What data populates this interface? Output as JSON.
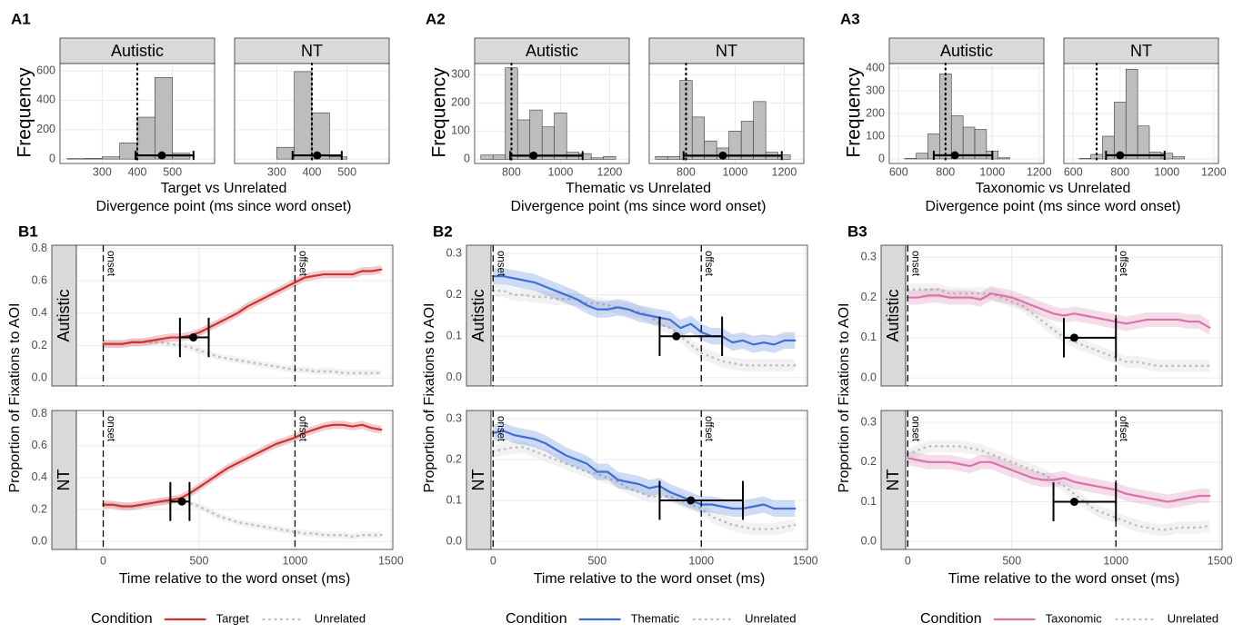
{
  "chart_data": [
    {
      "type": "histogram",
      "panel": "A1",
      "ylabel": "Frequency",
      "xlabel": [
        "Target vs Unrelated",
        "Divergence point (ms since word onset)"
      ],
      "xlim": [
        180,
        620
      ],
      "xticks": [
        300,
        400,
        500
      ],
      "ylim": [
        -30,
        650
      ],
      "yticks": [
        0,
        200,
        400,
        600
      ],
      "facets": [
        {
          "name": "Autistic",
          "bins": [
            200,
            250,
            300,
            350,
            400,
            450,
            500,
            550,
            600
          ],
          "values": [
            3,
            5,
            15,
            110,
            285,
            555,
            40,
            0
          ],
          "reference": 400,
          "estimate": 470,
          "ci": [
            395,
            560
          ]
        },
        {
          "name": "NT",
          "bins": [
            200,
            250,
            300,
            350,
            400,
            450,
            500,
            550,
            600
          ],
          "values": [
            0,
            0,
            80,
            595,
            315,
            15,
            0,
            0
          ],
          "reference": 400,
          "estimate": 415,
          "ci": [
            345,
            485
          ]
        }
      ]
    },
    {
      "type": "histogram",
      "panel": "A2",
      "ylabel": "Frequency",
      "xlabel": [
        "Thematic vs Unrelated",
        "Divergence point (ms since word onset)"
      ],
      "xlim": [
        650,
        1280
      ],
      "xticks": [
        800,
        1000,
        1200
      ],
      "ylim": [
        -15,
        340
      ],
      "yticks": [
        0,
        100,
        200,
        300
      ],
      "facets": [
        {
          "name": "Autistic",
          "bins": [
            675,
            725,
            775,
            825,
            875,
            925,
            975,
            1025,
            1075,
            1125,
            1175,
            1225
          ],
          "values": [
            15,
            15,
            325,
            140,
            175,
            115,
            165,
            25,
            20,
            5,
            10
          ],
          "reference": 800,
          "estimate": 890,
          "ci": [
            795,
            1090
          ]
        },
        {
          "name": "NT",
          "bins": [
            675,
            725,
            775,
            825,
            875,
            925,
            975,
            1025,
            1075,
            1125,
            1175,
            1225
          ],
          "values": [
            10,
            10,
            280,
            150,
            65,
            40,
            100,
            135,
            205,
            25,
            15
          ],
          "reference": 800,
          "estimate": 950,
          "ci": [
            790,
            1190
          ]
        }
      ]
    },
    {
      "type": "histogram",
      "panel": "A3",
      "ylabel": "Frequency",
      "xlabel": [
        "Taxonomic vs Unrelated",
        "Divergence point (ms since word onset)"
      ],
      "xlim": [
        560,
        1220
      ],
      "xticks": [
        600,
        800,
        1000,
        1200
      ],
      "ylim": [
        -20,
        420
      ],
      "yticks": [
        0,
        100,
        200,
        300,
        400
      ],
      "facets": [
        {
          "name": "Autistic",
          "bins": [
            625,
            675,
            725,
            775,
            825,
            875,
            925,
            975,
            1025,
            1075
          ],
          "values": [
            2,
            25,
            110,
            375,
            190,
            140,
            130,
            35,
            5
          ],
          "reference": 800,
          "estimate": 840,
          "ci": [
            750,
            1000
          ]
        },
        {
          "name": "NT",
          "bins": [
            625,
            675,
            725,
            775,
            825,
            875,
            925,
            975,
            1025,
            1075
          ],
          "values": [
            2,
            20,
            100,
            250,
            395,
            145,
            30,
            25,
            10
          ],
          "reference": 700,
          "estimate": 800,
          "ci": [
            740,
            990
          ]
        }
      ]
    },
    {
      "type": "line",
      "panel": "B1",
      "ylabel": "Proportion of Fixations to AOI",
      "xlabel": "Time relative to the word onset (ms)",
      "legend_title": "Condition",
      "xlim": [
        -140,
        1510
      ],
      "xticks": [
        0,
        500,
        1000,
        1500
      ],
      "ylim": [
        -0.05,
        0.82
      ],
      "yticks": [
        {
          "value": 0,
          "label": "0.0"
        },
        0.2,
        0.4,
        0.6,
        0.8
      ],
      "annotations": [
        {
          "value": 0,
          "label": "onset"
        },
        {
          "value": 1000,
          "label": "offset"
        }
      ],
      "x": [
        0,
        50,
        100,
        150,
        200,
        250,
        300,
        350,
        400,
        450,
        500,
        550,
        600,
        650,
        700,
        750,
        800,
        850,
        900,
        950,
        1000,
        1050,
        1100,
        1150,
        1200,
        1250,
        1300,
        1350,
        1400,
        1450
      ],
      "series": [
        {
          "name": "Target",
          "color": "#cc3333",
          "dash": false,
          "ribbon": 0.025
        },
        {
          "name": "Unrelated",
          "color": "#c0c0c0",
          "dash": true,
          "ribbon": 0.02
        }
      ],
      "facets": [
        {
          "name": "Autistic",
          "series": [
            {
              "values": [
                0.21,
                0.21,
                0.21,
                0.22,
                0.22,
                0.23,
                0.24,
                0.25,
                0.25,
                0.26,
                0.28,
                0.31,
                0.34,
                0.37,
                0.4,
                0.44,
                0.47,
                0.5,
                0.53,
                0.56,
                0.59,
                0.62,
                0.63,
                0.64,
                0.64,
                0.64,
                0.64,
                0.66,
                0.66,
                0.67
              ]
            },
            {
              "values": [
                0.21,
                0.21,
                0.21,
                0.22,
                0.22,
                0.22,
                0.22,
                0.21,
                0.2,
                0.19,
                0.17,
                0.15,
                0.13,
                0.12,
                0.11,
                0.1,
                0.09,
                0.08,
                0.07,
                0.06,
                0.05,
                0.05,
                0.04,
                0.04,
                0.04,
                0.03,
                0.03,
                0.03,
                0.03,
                0.03
              ]
            }
          ],
          "estimate": {
            "x": 470,
            "y": 0.25,
            "ci": [
              400,
              550
            ]
          }
        },
        {
          "name": "NT",
          "series": [
            {
              "values": [
                0.23,
                0.23,
                0.22,
                0.22,
                0.23,
                0.24,
                0.25,
                0.26,
                0.27,
                0.3,
                0.34,
                0.38,
                0.42,
                0.46,
                0.49,
                0.52,
                0.55,
                0.58,
                0.61,
                0.63,
                0.65,
                0.68,
                0.7,
                0.72,
                0.73,
                0.73,
                0.72,
                0.73,
                0.71,
                0.7
              ]
            },
            {
              "values": [
                0.23,
                0.23,
                0.22,
                0.22,
                0.23,
                0.24,
                0.25,
                0.25,
                0.25,
                0.24,
                0.22,
                0.19,
                0.16,
                0.14,
                0.12,
                0.11,
                0.1,
                0.09,
                0.08,
                0.07,
                0.06,
                0.05,
                0.05,
                0.04,
                0.04,
                0.04,
                0.03,
                0.04,
                0.04,
                0.04
              ]
            }
          ],
          "estimate": {
            "x": 410,
            "y": 0.25,
            "ci": [
              350,
              450
            ]
          }
        }
      ]
    },
    {
      "type": "line",
      "panel": "B2",
      "ylabel": "Proportion of Fixations to AOI",
      "xlabel": "Time relative to the word onset (ms)",
      "legend_title": "Condition",
      "xlim": [
        -10,
        1510
      ],
      "xticks": [
        0,
        500,
        1000,
        1500
      ],
      "ylim": [
        -0.02,
        0.32
      ],
      "yticks": [
        {
          "value": 0,
          "label": "0.0"
        },
        0.1,
        0.2,
        0.3
      ],
      "annotations": [
        {
          "value": 0,
          "label": "onset"
        },
        {
          "value": 1000,
          "label": "offset"
        }
      ],
      "x": [
        0,
        50,
        100,
        150,
        200,
        250,
        300,
        350,
        400,
        450,
        500,
        550,
        600,
        650,
        700,
        750,
        800,
        850,
        900,
        950,
        1000,
        1050,
        1100,
        1150,
        1200,
        1250,
        1300,
        1350,
        1400,
        1450
      ],
      "series": [
        {
          "name": "Thematic",
          "color": "#3d6fd6",
          "dash": false,
          "ribbon": 0.02
        },
        {
          "name": "Unrelated",
          "color": "#c0c0c0",
          "dash": true,
          "ribbon": 0.015
        }
      ],
      "facets": [
        {
          "name": "Autistic",
          "series": [
            {
              "values": [
                0.245,
                0.245,
                0.24,
                0.235,
                0.23,
                0.22,
                0.21,
                0.2,
                0.19,
                0.175,
                0.165,
                0.165,
                0.17,
                0.165,
                0.155,
                0.15,
                0.145,
                0.14,
                0.12,
                0.13,
                0.11,
                0.1,
                0.1,
                0.085,
                0.09,
                0.08,
                0.085,
                0.08,
                0.09,
                0.09
              ]
            },
            {
              "values": [
                0.21,
                0.21,
                0.2,
                0.2,
                0.195,
                0.195,
                0.19,
                0.19,
                0.19,
                0.18,
                0.18,
                0.175,
                0.17,
                0.165,
                0.16,
                0.15,
                0.13,
                0.12,
                0.1,
                0.08,
                0.06,
                0.05,
                0.04,
                0.035,
                0.03,
                0.03,
                0.03,
                0.03,
                0.03,
                0.03
              ]
            }
          ],
          "estimate": {
            "x": 880,
            "y": 0.1,
            "ci": [
              800,
              1100
            ]
          }
        },
        {
          "name": "NT",
          "series": [
            {
              "values": [
                0.265,
                0.27,
                0.26,
                0.255,
                0.25,
                0.24,
                0.225,
                0.21,
                0.2,
                0.19,
                0.17,
                0.17,
                0.15,
                0.145,
                0.14,
                0.13,
                0.135,
                0.12,
                0.11,
                0.1,
                0.09,
                0.09,
                0.085,
                0.08,
                0.08,
                0.085,
                0.09,
                0.08,
                0.08,
                0.08
              ]
            },
            {
              "values": [
                0.22,
                0.225,
                0.23,
                0.23,
                0.22,
                0.21,
                0.2,
                0.19,
                0.18,
                0.17,
                0.165,
                0.155,
                0.145,
                0.13,
                0.12,
                0.11,
                0.11,
                0.11,
                0.1,
                0.09,
                0.08,
                0.06,
                0.05,
                0.04,
                0.035,
                0.03,
                0.03,
                0.03,
                0.035,
                0.04
              ]
            }
          ],
          "estimate": {
            "x": 950,
            "y": 0.1,
            "ci": [
              800,
              1200
            ]
          }
        }
      ]
    },
    {
      "type": "line",
      "panel": "B3",
      "ylabel": "Proportion of Fixations to AOI",
      "xlabel": "Time relative to the word onset (ms)",
      "legend_title": "Condition",
      "xlim": [
        -10,
        1510
      ],
      "xticks": [
        0,
        500,
        1000,
        1500
      ],
      "ylim": [
        -0.02,
        0.33
      ],
      "yticks": [
        {
          "value": 0,
          "label": "0.0"
        },
        0.1,
        0.2,
        0.3
      ],
      "annotations": [
        {
          "value": 0,
          "label": "onset"
        },
        {
          "value": 1000,
          "label": "offset"
        }
      ],
      "x": [
        0,
        50,
        100,
        150,
        200,
        250,
        300,
        350,
        400,
        450,
        500,
        550,
        600,
        650,
        700,
        750,
        800,
        850,
        900,
        950,
        1000,
        1050,
        1100,
        1150,
        1200,
        1250,
        1300,
        1350,
        1400,
        1450
      ],
      "series": [
        {
          "name": "Taxonomic",
          "color": "#d874a8",
          "dash": false,
          "ribbon": 0.018
        },
        {
          "name": "Unrelated",
          "color": "#c0c0c0",
          "dash": true,
          "ribbon": 0.015
        }
      ],
      "facets": [
        {
          "name": "Autistic",
          "series": [
            {
              "values": [
                0.2,
                0.2,
                0.205,
                0.205,
                0.2,
                0.2,
                0.2,
                0.195,
                0.21,
                0.205,
                0.2,
                0.19,
                0.18,
                0.17,
                0.16,
                0.155,
                0.16,
                0.155,
                0.15,
                0.145,
                0.14,
                0.135,
                0.14,
                0.145,
                0.145,
                0.145,
                0.145,
                0.14,
                0.14,
                0.125
              ]
            },
            {
              "values": [
                0.22,
                0.22,
                0.22,
                0.22,
                0.21,
                0.21,
                0.21,
                0.21,
                0.21,
                0.2,
                0.19,
                0.18,
                0.16,
                0.14,
                0.12,
                0.1,
                0.09,
                0.08,
                0.07,
                0.06,
                0.05,
                0.04,
                0.04,
                0.035,
                0.03,
                0.03,
                0.03,
                0.03,
                0.03,
                0.03
              ]
            }
          ],
          "estimate": {
            "x": 800,
            "y": 0.1,
            "ci": [
              750,
              1000
            ]
          }
        },
        {
          "name": "NT",
          "series": [
            {
              "values": [
                0.21,
                0.205,
                0.2,
                0.2,
                0.2,
                0.195,
                0.19,
                0.2,
                0.2,
                0.19,
                0.18,
                0.17,
                0.16,
                0.155,
                0.155,
                0.16,
                0.15,
                0.145,
                0.14,
                0.135,
                0.13,
                0.12,
                0.115,
                0.11,
                0.105,
                0.1,
                0.105,
                0.11,
                0.115,
                0.115
              ]
            },
            {
              "values": [
                0.22,
                0.23,
                0.24,
                0.24,
                0.24,
                0.24,
                0.235,
                0.23,
                0.22,
                0.21,
                0.2,
                0.19,
                0.18,
                0.17,
                0.155,
                0.14,
                0.12,
                0.1,
                0.08,
                0.07,
                0.06,
                0.05,
                0.04,
                0.035,
                0.03,
                0.03,
                0.035,
                0.035,
                0.035,
                0.04
              ]
            }
          ],
          "estimate": {
            "x": 800,
            "y": 0.1,
            "ci": [
              700,
              1000
            ]
          }
        }
      ]
    }
  ]
}
